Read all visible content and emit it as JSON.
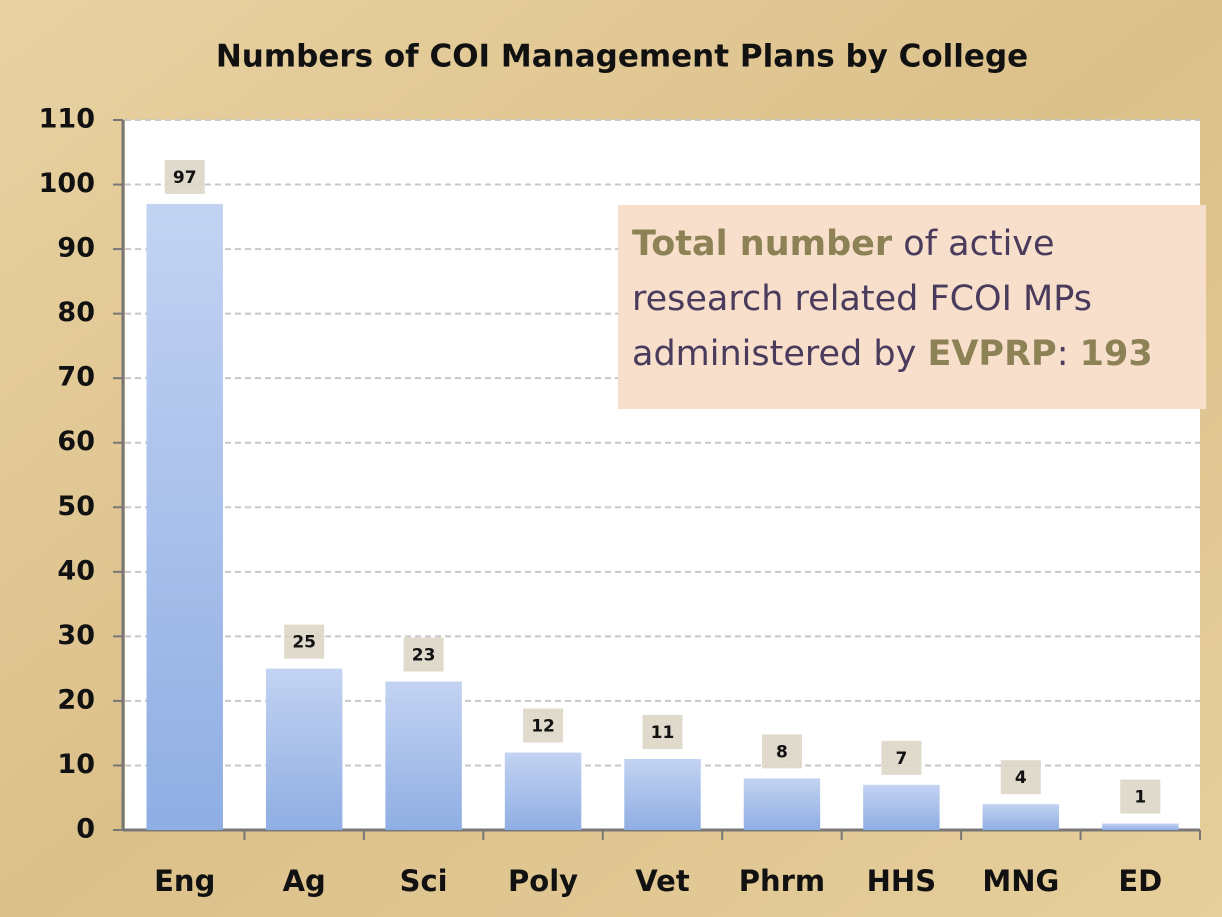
{
  "chart_data": {
    "type": "bar",
    "title": "Numbers of COI Management Plans by College",
    "categories": [
      "Eng",
      "Ag",
      "Sci",
      "Poly",
      "Vet",
      "Phrm",
      "HHS",
      "MNG",
      "ED"
    ],
    "values": [
      97,
      25,
      23,
      12,
      11,
      8,
      7,
      4,
      1
    ],
    "color": "#8faee3",
    "ylim": [
      0,
      110
    ],
    "yticks": [
      0,
      10,
      20,
      30,
      40,
      50,
      60,
      70,
      80,
      90,
      100,
      110
    ],
    "grid": true,
    "annotation": [
      {
        "text": "Total number",
        "color": "#8c8255",
        "bold": true
      },
      {
        "text": " of active research related FCOI MPs administered by ",
        "color": "#4a3a5c",
        "bold": false
      },
      {
        "text": "EVPRP",
        "color": "#8c8255",
        "bold": true
      },
      {
        "text": ": ",
        "color": "#4a3a5c",
        "bold": false
      },
      {
        "text": "193",
        "color": "#8c8255",
        "bold": true
      }
    ]
  }
}
